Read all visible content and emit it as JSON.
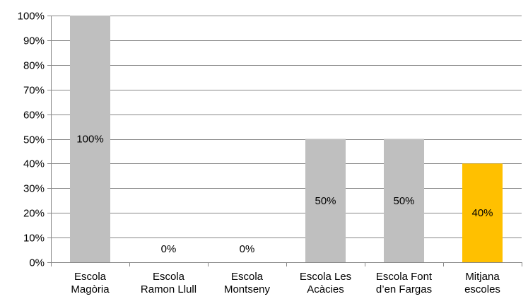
{
  "chart_data": {
    "type": "bar",
    "categories": [
      [
        "Escola",
        "Magòria"
      ],
      [
        "Escola",
        "Ramon Llull"
      ],
      [
        "Escola",
        "Montseny"
      ],
      [
        "Escola Les",
        "Acàcies"
      ],
      [
        "Escola Font",
        "d’en Fargas"
      ],
      [
        "Mitjana",
        "escoles"
      ]
    ],
    "values": [
      100,
      0,
      0,
      50,
      50,
      40
    ],
    "data_labels": [
      "100%",
      "0%",
      "0%",
      "50%",
      "50%",
      "40%"
    ],
    "bar_colors": [
      "#BFBFBF",
      "#BFBFBF",
      "#BFBFBF",
      "#BFBFBF",
      "#BFBFBF",
      "#FFC000"
    ],
    "ylim": [
      0,
      100
    ],
    "yticks": [
      0,
      10,
      20,
      30,
      40,
      50,
      60,
      70,
      80,
      90,
      100
    ],
    "ytick_labels": [
      "0%",
      "10%",
      "20%",
      "30%",
      "40%",
      "50%",
      "60%",
      "70%",
      "80%",
      "90%",
      "100%"
    ],
    "grid": true,
    "title": "",
    "xlabel": "",
    "ylabel": "",
    "legend": "none"
  }
}
